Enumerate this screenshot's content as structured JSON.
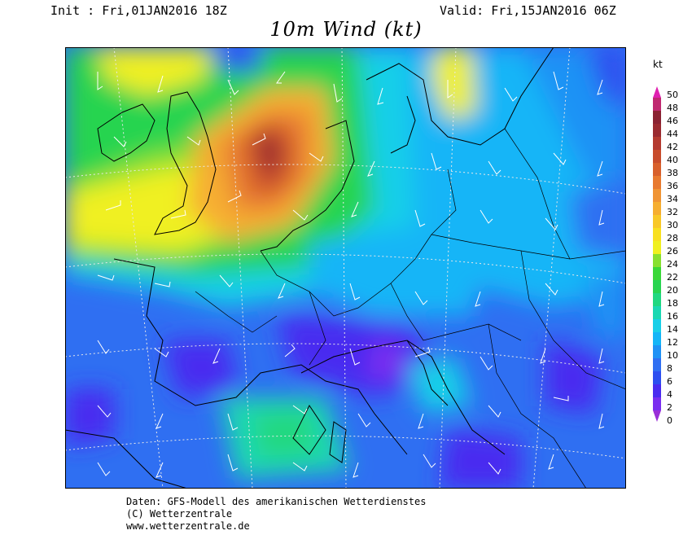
{
  "header": {
    "init": "Init : Fri,01JAN2016 18Z",
    "valid": "Valid: Fri,15JAN2016 06Z",
    "title": "10m Wind (kt)"
  },
  "legend": {
    "unit": "kt",
    "levels": [
      "50",
      "48",
      "46",
      "44",
      "42",
      "40",
      "38",
      "36",
      "34",
      "32",
      "30",
      "28",
      "26",
      "24",
      "22",
      "20",
      "18",
      "16",
      "14",
      "12",
      "10",
      "8",
      "6",
      "4",
      "2",
      "0"
    ],
    "colors": {
      "0": "#9a2fd8",
      "2": "#7a2ef0",
      "4": "#4a2cf0",
      "6": "#2d4ff0",
      "8": "#2f6ff2",
      "10": "#1f92f5",
      "12": "#14b5f7",
      "14": "#18cfe8",
      "16": "#1ad8b2",
      "18": "#20d880",
      "20": "#28d450",
      "22": "#3ad838",
      "24": "#88e030",
      "26": "#f0f020",
      "28": "#f8e020",
      "30": "#f8c828",
      "32": "#f6ae30",
      "34": "#f09434",
      "36": "#e87a30",
      "38": "#d8602c",
      "40": "#c84c2c",
      "42": "#b43a30",
      "44": "#9a2a30",
      "46": "#8a2232",
      "48": "#c02870",
      "50": "#e020b0"
    }
  },
  "credits": {
    "line1": "Daten: GFS-Modell des amerikanischen Wetterdienstes",
    "line2": "(C) Wetterzentrale",
    "line3": "www.wetterzentrale.de"
  }
}
